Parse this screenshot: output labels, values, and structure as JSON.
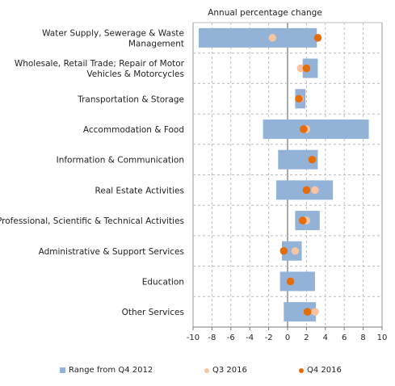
{
  "chart_data": {
    "type": "range_dot",
    "title": "Annual percentage change",
    "xlim": [
      -10,
      10
    ],
    "x_ticks": [
      "-10",
      "-8",
      "-6",
      "-4",
      "-2",
      "0",
      "2",
      "4",
      "6",
      "8",
      "10"
    ],
    "grid": "vertical dashed + row separators",
    "legend_position": "bottom",
    "categories": [
      [
        "Water Supply, Sewerage & Waste",
        "Management"
      ],
      [
        "Wholesale, Retail Trade; Repair of Motor",
        "Vehicles & Motorcycles"
      ],
      [
        "Transportation & Storage"
      ],
      [
        "Accommodation & Food"
      ],
      [
        "Information & Communication"
      ],
      [
        "Real Estate Activities"
      ],
      [
        "Professional, Scientific & Technical Activities"
      ],
      [
        "Administrative & Support Services"
      ],
      [
        "Education"
      ],
      [
        "Other Services"
      ]
    ],
    "series": [
      {
        "name": "Range from Q4 2012",
        "kind": "range",
        "color": "#92b2d8",
        "values": [
          [
            -9.4,
            3.1
          ],
          [
            1.6,
            3.2
          ],
          [
            0.8,
            1.9
          ],
          [
            -2.6,
            8.6
          ],
          [
            -1.0,
            3.2
          ],
          [
            -1.2,
            4.8
          ],
          [
            0.8,
            3.4
          ],
          [
            -0.6,
            1.5
          ],
          [
            -0.8,
            2.9
          ],
          [
            -0.4,
            3.0
          ]
        ]
      },
      {
        "name": "Q3 2016",
        "kind": "dot",
        "color": "#f8c3a0",
        "values": [
          -1.6,
          1.4,
          1.3,
          2.0,
          2.6,
          2.9,
          2.0,
          0.8,
          0.3,
          2.9
        ]
      },
      {
        "name": "Q4 2016",
        "kind": "dot",
        "color": "#e46c0a",
        "values": [
          3.2,
          2.0,
          1.2,
          1.7,
          2.6,
          2.0,
          1.6,
          -0.4,
          0.3,
          2.1
        ]
      }
    ]
  }
}
